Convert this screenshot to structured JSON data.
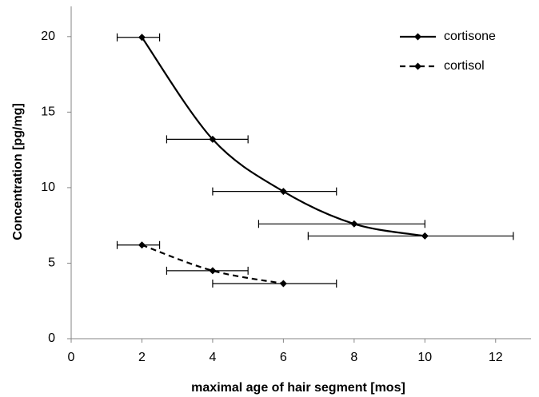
{
  "chart_data": {
    "type": "line",
    "xlabel": "maximal age of hair segment [mos]",
    "ylabel": "Concentration [pg/mg]",
    "xlim": [
      0,
      13
    ],
    "xticks": [
      0,
      2,
      4,
      6,
      8,
      10,
      12
    ],
    "ylim": [
      0,
      22
    ],
    "yticks": [
      0,
      5,
      10,
      15,
      20
    ],
    "grid": false,
    "legend": "top-right",
    "series": [
      {
        "name": "cortisone",
        "color": "#000000",
        "style": "solid",
        "smooth": true,
        "x": [
          2,
          4,
          6,
          8,
          10
        ],
        "values": [
          19.95,
          13.2,
          9.75,
          7.6,
          6.8
        ],
        "xerr_minus": [
          0.7,
          1.3,
          2,
          2.7,
          3.3
        ],
        "xerr_plus": [
          0.5,
          1,
          1.5,
          2,
          2.5
        ]
      },
      {
        "name": "cortisol",
        "color": "#000000",
        "style": "dashed",
        "smooth": true,
        "x": [
          2,
          4,
          6
        ],
        "values": [
          6.2,
          4.5,
          3.65
        ],
        "xerr_minus": [
          0.7,
          1.3,
          2
        ],
        "xerr_plus": [
          0.5,
          1,
          1.5
        ]
      }
    ]
  }
}
